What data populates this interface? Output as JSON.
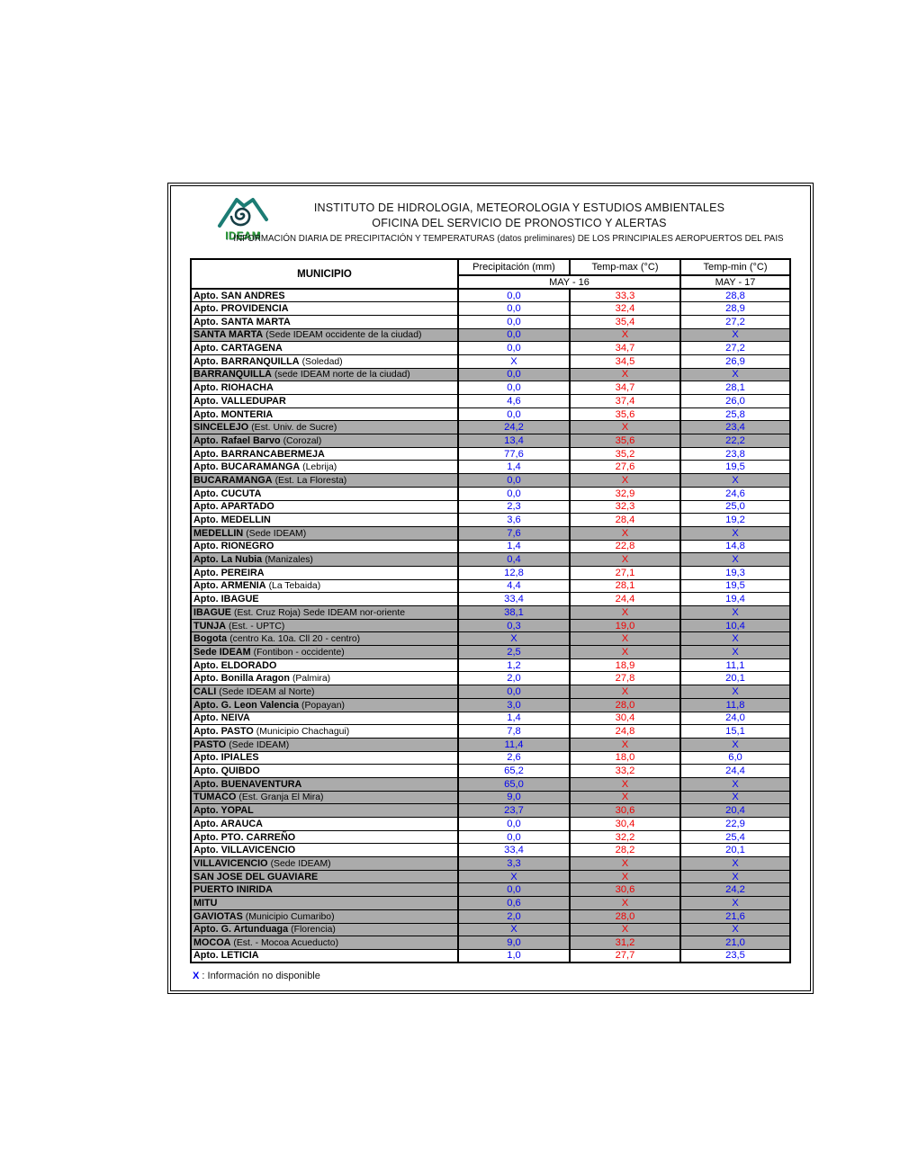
{
  "header": {
    "logo_text": "IDEAM",
    "title": "INSTITUTO DE HIDROLOGIA, METEOROLOGIA Y ESTUDIOS AMBIENTALES",
    "subtitle": "OFICINA DEL SERVICIO DE PRONOSTICO Y ALERTAS",
    "info_line": "INFORMACIÓN DIARIA DE PRECIPITACIÓN Y TEMPERATURAS (datos preliminares) DE LOS PRINCIPIALES AEROPUERTOS DEL PAIS"
  },
  "table": {
    "columns": [
      "MUNICIPIO",
      "Precipitación (mm)",
      "Temp-max (°C)",
      "Temp-min (°C)"
    ],
    "subheader": {
      "may16": "MAY - 16",
      "may17": "MAY - 17"
    },
    "colors": {
      "precip": "#0000f0",
      "temp_max": "#f00000",
      "temp_min": "#0000f0",
      "gray_row": "#ababab"
    },
    "rows": [
      {
        "name": "Apto. SAN ANDRES",
        "detail": "",
        "precip": "0,0",
        "temp_max": "33,3",
        "temp_min": "28,8",
        "gray": false
      },
      {
        "name": "Apto. PROVIDENCIA",
        "detail": "",
        "precip": "0,0",
        "temp_max": "32,4",
        "temp_min": "28,9",
        "gray": false
      },
      {
        "name": "Apto. SANTA MARTA",
        "detail": "",
        "precip": "0,0",
        "temp_max": "35,4",
        "temp_min": "27,2",
        "gray": false
      },
      {
        "name": "SANTA MARTA",
        "detail": "(Sede IDEAM occidente de la ciudad)",
        "precip": "0,0",
        "temp_max": "X",
        "temp_min": "X",
        "gray": true
      },
      {
        "name": "Apto. CARTAGENA",
        "detail": "",
        "precip": "0,0",
        "temp_max": "34,7",
        "temp_min": "27,2",
        "gray": false
      },
      {
        "name": "Apto. BARRANQUILLA",
        "detail": "(Soledad)",
        "precip": "X",
        "temp_max": "34,5",
        "temp_min": "26,9",
        "gray": false
      },
      {
        "name": "BARRANQUILLA",
        "detail": "(sede IDEAM norte de la ciudad)",
        "precip": "0,0",
        "temp_max": "X",
        "temp_min": "X",
        "gray": true
      },
      {
        "name": "Apto. RIOHACHA",
        "detail": "",
        "precip": "0,0",
        "temp_max": "34,7",
        "temp_min": "28,1",
        "gray": false
      },
      {
        "name": "Apto. VALLEDUPAR",
        "detail": "",
        "precip": "4,6",
        "temp_max": "37,4",
        "temp_min": "26,0",
        "gray": false
      },
      {
        "name": "Apto. MONTERIA",
        "detail": "",
        "precip": "0,0",
        "temp_max": "35,6",
        "temp_min": "25,8",
        "gray": false
      },
      {
        "name": "SINCELEJO",
        "detail": "(Est. Univ. de Sucre)",
        "precip": "24,2",
        "temp_max": "X",
        "temp_min": "23,4",
        "gray": true
      },
      {
        "name": "Apto. Rafael Barvo",
        "detail": "(Corozal)",
        "precip": "13,4",
        "temp_max": "35,6",
        "temp_min": "22,2",
        "gray": true
      },
      {
        "name": "Apto. BARRANCABERMEJA",
        "detail": "",
        "precip": "77,6",
        "temp_max": "35,2",
        "temp_min": "23,8",
        "gray": false
      },
      {
        "name": "Apto. BUCARAMANGA",
        "detail": "(Lebrija)",
        "precip": "1,4",
        "temp_max": "27,6",
        "temp_min": "19,5",
        "gray": false
      },
      {
        "name": "BUCARAMANGA",
        "detail": "(Est. La Floresta)",
        "precip": "0,0",
        "temp_max": "X",
        "temp_min": "X",
        "gray": true
      },
      {
        "name": "Apto. CUCUTA",
        "detail": "",
        "precip": "0,0",
        "temp_max": "32,9",
        "temp_min": "24,6",
        "gray": false
      },
      {
        "name": "Apto. APARTADO",
        "detail": "",
        "precip": "2,3",
        "temp_max": "32,3",
        "temp_min": "25,0",
        "gray": false
      },
      {
        "name": "Apto. MEDELLIN",
        "detail": "",
        "precip": "3,6",
        "temp_max": "28,4",
        "temp_min": "19,2",
        "gray": false
      },
      {
        "name": "MEDELLIN",
        "detail": "(Sede IDEAM)",
        "precip": "7,6",
        "temp_max": "X",
        "temp_min": "X",
        "gray": true
      },
      {
        "name": "Apto. RIONEGRO",
        "detail": "",
        "precip": "1,4",
        "temp_max": "22,8",
        "temp_min": "14,8",
        "gray": false
      },
      {
        "name": "Apto. La Nubia",
        "detail": "(Manizales)",
        "precip": "0,4",
        "temp_max": "X",
        "temp_min": "X",
        "gray": true
      },
      {
        "name": "Apto. PEREIRA",
        "detail": "",
        "precip": "12,8",
        "temp_max": "27,1",
        "temp_min": "19,3",
        "gray": false
      },
      {
        "name": "Apto. ARMENIA",
        "detail": "(La Tebaida)",
        "precip": "4,4",
        "temp_max": "28,1",
        "temp_min": "19,5",
        "gray": false
      },
      {
        "name": "Apto. IBAGUE",
        "detail": "",
        "precip": "33,4",
        "temp_max": "24,4",
        "temp_min": "19,4",
        "gray": false
      },
      {
        "name": "IBAGUE",
        "detail": "(Est. Cruz Roja) Sede IDEAM  nor-oriente",
        "precip": "38,1",
        "temp_max": "X",
        "temp_min": "X",
        "gray": true
      },
      {
        "name": "TUNJA",
        "detail": "(Est. - UPTC)",
        "precip": "0,3",
        "temp_max": "19,0",
        "temp_min": "10,4",
        "gray": true
      },
      {
        "name": "Bogota",
        "detail": "(centro Ka. 10a. Cll 20 - centro)",
        "precip": "X",
        "temp_max": "X",
        "temp_min": "X",
        "gray": true
      },
      {
        "name": "Sede IDEAM",
        "detail": "(Fontibon - occidente)",
        "precip": "2,5",
        "temp_max": "X",
        "temp_min": "X",
        "gray": true
      },
      {
        "name": "Apto. ELDORADO",
        "detail": "",
        "precip": "1,2",
        "temp_max": "18,9",
        "temp_min": "11,1",
        "gray": false
      },
      {
        "name": "Apto. Bonilla Aragon",
        "detail": "(Palmira)",
        "precip": "2,0",
        "temp_max": "27,8",
        "temp_min": "20,1",
        "gray": false
      },
      {
        "name": "CALI",
        "detail": "(Sede IDEAM al Norte)",
        "precip": "0,0",
        "temp_max": "X",
        "temp_min": "X",
        "gray": true
      },
      {
        "name": "Apto. G. Leon Valencia",
        "detail": "(Popayan)",
        "precip": "3,0",
        "temp_max": "28,0",
        "temp_min": "11,8",
        "gray": true
      },
      {
        "name": "Apto. NEIVA",
        "detail": "",
        "precip": "1,4",
        "temp_max": "30,4",
        "temp_min": "24,0",
        "gray": false
      },
      {
        "name": "Apto. PASTO",
        "detail": "(Municipio Chachagui)",
        "precip": "7,8",
        "temp_max": "24,8",
        "temp_min": "15,1",
        "gray": false
      },
      {
        "name": "PASTO",
        "detail": "(Sede IDEAM)",
        "precip": "11,4",
        "temp_max": "X",
        "temp_min": "X",
        "gray": true
      },
      {
        "name": "Apto. IPIALES",
        "detail": "",
        "precip": "2,6",
        "temp_max": "18,0",
        "temp_min": "6,0",
        "gray": false
      },
      {
        "name": "Apto. QUIBDO",
        "detail": "",
        "precip": "65,2",
        "temp_max": "33,2",
        "temp_min": "24,4",
        "gray": false
      },
      {
        "name": "Apto. BUENAVENTURA",
        "detail": "",
        "precip": "65,0",
        "temp_max": "X",
        "temp_min": "X",
        "gray": true
      },
      {
        "name": "TUMACO",
        "detail": "(Est. Granja El Mira)",
        "precip": "9,0",
        "temp_max": "X",
        "temp_min": "X",
        "gray": true
      },
      {
        "name": "Apto. YOPAL",
        "detail": "",
        "precip": "23,7",
        "temp_max": "30,6",
        "temp_min": "20,4",
        "gray": true
      },
      {
        "name": "Apto. ARAUCA",
        "detail": "",
        "precip": "0,0",
        "temp_max": "30,4",
        "temp_min": "22,9",
        "gray": false
      },
      {
        "name": "Apto. PTO.  CARREÑO",
        "detail": "",
        "precip": "0,0",
        "temp_max": "32,2",
        "temp_min": "25,4",
        "gray": false
      },
      {
        "name": "Apto. VILLAVICENCIO",
        "detail": "",
        "precip": "33,4",
        "temp_max": "28,2",
        "temp_min": "20,1",
        "gray": false
      },
      {
        "name": "VILLAVICENCIO",
        "detail": "(Sede IDEAM)",
        "precip": "3,3",
        "temp_max": "X",
        "temp_min": "X",
        "gray": true
      },
      {
        "name": "SAN JOSE DEL GUAVIARE",
        "detail": "",
        "precip": "X",
        "temp_max": "X",
        "temp_min": "X",
        "gray": true
      },
      {
        "name": "PUERTO INIRIDA",
        "detail": "",
        "precip": "0,0",
        "temp_max": "30,6",
        "temp_min": "24,2",
        "gray": true
      },
      {
        "name": "MITU",
        "detail": "",
        "precip": "0,6",
        "temp_max": "X",
        "temp_min": "X",
        "gray": true
      },
      {
        "name": "GAVIOTAS",
        "detail": "(Municipio Cumaribo)",
        "precip": "2,0",
        "temp_max": "28,0",
        "temp_min": "21,6",
        "gray": true
      },
      {
        "name": "Apto. G. Artunduaga",
        "detail": "(Florencia)",
        "precip": "X",
        "temp_max": "X",
        "temp_min": "X",
        "gray": true
      },
      {
        "name": "MOCOA",
        "detail": "(Est. - Mocoa Acueducto)",
        "precip": "9,0",
        "temp_max": "31,2",
        "temp_min": "21,0",
        "gray": true
      },
      {
        "name": "Apto. LETICIA",
        "detail": "",
        "precip": "1,0",
        "temp_max": "27,7",
        "temp_min": "23,5",
        "gray": false
      }
    ]
  },
  "footnote": {
    "symbol": "X",
    "text": " : Información no disponible"
  }
}
